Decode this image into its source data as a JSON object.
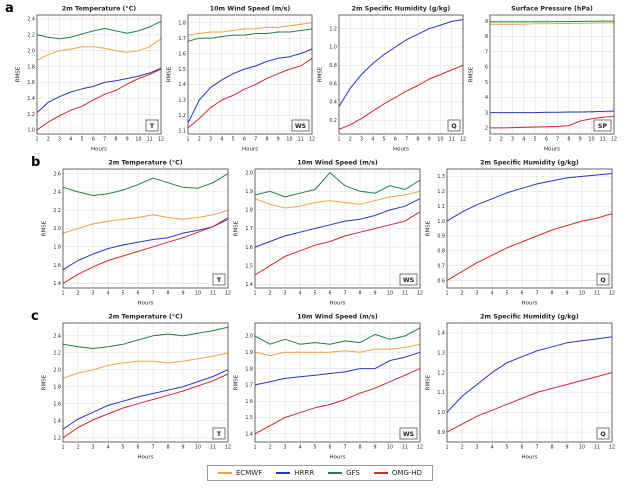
{
  "figure": {
    "panel_labels": [
      "a",
      "b",
      "c"
    ]
  },
  "colors": {
    "ECMWF": "#F2A33C",
    "HRRR": "#2238C9",
    "GFS": "#1D8348",
    "OMG-HD": "#D62828",
    "grid": "#dcdcdc",
    "axis": "#444444"
  },
  "legend": {
    "entries": [
      "ECMWF",
      "HRRR",
      "GFS",
      "OMG-HD"
    ]
  },
  "chart_data": [
    {
      "panel": "a",
      "type": "line",
      "title": "2m Temperature (°C)",
      "xlabel": "Hours",
      "ylabel": "RMSE",
      "corner_label": "T",
      "x": [
        1,
        2,
        3,
        4,
        5,
        6,
        7,
        8,
        9,
        10,
        11,
        12
      ],
      "ylim": [
        0.95,
        2.45
      ],
      "yticks": [
        "1.0",
        "1.2",
        "1.4",
        "1.6",
        "1.8",
        "2.0",
        "2.2",
        "2.4"
      ],
      "series": [
        {
          "name": "GFS",
          "values": [
            2.2,
            2.17,
            2.15,
            2.17,
            2.21,
            2.25,
            2.28,
            2.25,
            2.22,
            2.25,
            2.3,
            2.37
          ]
        },
        {
          "name": "ECMWF",
          "values": [
            1.88,
            1.95,
            2.0,
            2.02,
            2.05,
            2.05,
            2.03,
            2.0,
            1.98,
            2.0,
            2.05,
            2.15
          ]
        },
        {
          "name": "HRRR",
          "values": [
            1.22,
            1.35,
            1.42,
            1.48,
            1.52,
            1.55,
            1.6,
            1.62,
            1.65,
            1.68,
            1.72,
            1.78
          ]
        },
        {
          "name": "OMG-HD",
          "values": [
            1.0,
            1.1,
            1.18,
            1.25,
            1.3,
            1.38,
            1.45,
            1.5,
            1.58,
            1.65,
            1.7,
            1.77
          ]
        }
      ]
    },
    {
      "panel": "a",
      "type": "line",
      "title": "10m Wind Speed (m/s)",
      "xlabel": "Hours",
      "ylabel": "RMSE",
      "corner_label": "WS",
      "x": [
        1,
        2,
        3,
        4,
        5,
        6,
        7,
        8,
        9,
        10,
        11,
        12
      ],
      "ylim": [
        1.08,
        1.85
      ],
      "yticks": [
        "1.1",
        "1.2",
        "1.3",
        "1.4",
        "1.5",
        "1.6",
        "1.7",
        "1.8"
      ],
      "series": [
        {
          "name": "GFS",
          "values": [
            1.68,
            1.7,
            1.7,
            1.71,
            1.72,
            1.72,
            1.73,
            1.73,
            1.74,
            1.74,
            1.75,
            1.76
          ]
        },
        {
          "name": "ECMWF",
          "values": [
            1.72,
            1.73,
            1.74,
            1.74,
            1.75,
            1.76,
            1.76,
            1.77,
            1.77,
            1.78,
            1.79,
            1.8
          ]
        },
        {
          "name": "HRRR",
          "values": [
            1.15,
            1.3,
            1.38,
            1.43,
            1.47,
            1.5,
            1.52,
            1.55,
            1.57,
            1.58,
            1.6,
            1.63
          ]
        },
        {
          "name": "OMG-HD",
          "values": [
            1.12,
            1.18,
            1.25,
            1.3,
            1.33,
            1.37,
            1.4,
            1.44,
            1.47,
            1.5,
            1.52,
            1.57
          ]
        }
      ]
    },
    {
      "panel": "a",
      "type": "line",
      "title": "2m Specific Humidity (g/kg)",
      "xlabel": "Hours",
      "ylabel": "RMSE",
      "corner_label": "Q",
      "x": [
        1,
        2,
        3,
        4,
        5,
        6,
        7,
        8,
        9,
        10,
        11,
        12
      ],
      "ylim": [
        0.05,
        1.35
      ],
      "yticks": [
        "0.2",
        "0.4",
        "0.6",
        "0.8",
        "1.0",
        "1.2"
      ],
      "series": [
        {
          "name": "HRRR",
          "values": [
            0.35,
            0.55,
            0.7,
            0.82,
            0.92,
            1.0,
            1.08,
            1.14,
            1.2,
            1.24,
            1.28,
            1.3
          ]
        },
        {
          "name": "OMG-HD",
          "values": [
            0.1,
            0.15,
            0.22,
            0.3,
            0.38,
            0.45,
            0.52,
            0.58,
            0.65,
            0.7,
            0.75,
            0.8
          ]
        }
      ]
    },
    {
      "panel": "a",
      "type": "line",
      "title": "Surface Pressure (hPa)",
      "xlabel": "Hours",
      "ylabel": "RMSE",
      "corner_label": "SP",
      "x": [
        1,
        2,
        3,
        4,
        5,
        6,
        7,
        8,
        9,
        10,
        11,
        12
      ],
      "ylim": [
        1.6,
        9.4
      ],
      "yticks": [
        "2",
        "3",
        "4",
        "5",
        "6",
        "7",
        "8",
        "9"
      ],
      "series": [
        {
          "name": "GFS",
          "values": [
            8.95,
            8.95,
            8.95,
            8.95,
            8.96,
            8.96,
            8.97,
            8.97,
            8.98,
            8.98,
            9.0,
            9.0
          ]
        },
        {
          "name": "ECMWF",
          "values": [
            8.8,
            8.8,
            8.8,
            8.8,
            8.82,
            8.82,
            8.84,
            8.84,
            8.86,
            8.86,
            8.88,
            8.88
          ]
        },
        {
          "name": "HRRR",
          "values": [
            3.0,
            3.0,
            3.0,
            3.0,
            3.0,
            3.02,
            3.02,
            3.04,
            3.04,
            3.06,
            3.08,
            3.1
          ]
        },
        {
          "name": "OMG-HD",
          "values": [
            2.0,
            2.0,
            2.02,
            2.04,
            2.06,
            2.08,
            2.1,
            2.15,
            2.45,
            2.6,
            2.7,
            2.75
          ]
        }
      ]
    },
    {
      "panel": "b",
      "type": "line",
      "title": "2m Temperature (°C)",
      "xlabel": "Hours",
      "ylabel": "RMSE",
      "corner_label": "T",
      "x": [
        1,
        2,
        3,
        4,
        5,
        6,
        7,
        8,
        9,
        10,
        11,
        12
      ],
      "ylim": [
        1.35,
        2.65
      ],
      "yticks": [
        "1.4",
        "1.6",
        "1.8",
        "2.0",
        "2.2",
        "2.4",
        "2.6"
      ],
      "series": [
        {
          "name": "GFS",
          "values": [
            2.45,
            2.4,
            2.36,
            2.38,
            2.42,
            2.48,
            2.55,
            2.5,
            2.45,
            2.44,
            2.5,
            2.6
          ]
        },
        {
          "name": "ECMWF",
          "values": [
            1.95,
            2.0,
            2.05,
            2.08,
            2.1,
            2.12,
            2.15,
            2.12,
            2.1,
            2.12,
            2.15,
            2.2
          ]
        },
        {
          "name": "HRRR",
          "values": [
            1.55,
            1.65,
            1.72,
            1.78,
            1.82,
            1.85,
            1.88,
            1.9,
            1.95,
            1.98,
            2.02,
            2.1
          ]
        },
        {
          "name": "OMG-HD",
          "values": [
            1.4,
            1.5,
            1.58,
            1.65,
            1.7,
            1.75,
            1.8,
            1.85,
            1.9,
            1.96,
            2.02,
            2.12
          ]
        }
      ]
    },
    {
      "panel": "b",
      "type": "line",
      "title": "10m Wind Speed (m/s)",
      "xlabel": "Hours",
      "ylabel": "RMSE",
      "corner_label": "WS",
      "x": [
        1,
        2,
        3,
        4,
        5,
        6,
        7,
        8,
        9,
        10,
        11,
        12
      ],
      "ylim": [
        1.38,
        2.02
      ],
      "yticks": [
        "1.4",
        "1.5",
        "1.6",
        "1.7",
        "1.8",
        "1.9",
        "2.0"
      ],
      "series": [
        {
          "name": "GFS",
          "values": [
            1.88,
            1.9,
            1.87,
            1.89,
            1.91,
            2.0,
            1.93,
            1.9,
            1.89,
            1.93,
            1.91,
            1.96
          ]
        },
        {
          "name": "ECMWF",
          "values": [
            1.86,
            1.83,
            1.81,
            1.82,
            1.84,
            1.85,
            1.84,
            1.83,
            1.85,
            1.87,
            1.88,
            1.9
          ]
        },
        {
          "name": "HRRR",
          "values": [
            1.6,
            1.63,
            1.66,
            1.68,
            1.7,
            1.72,
            1.74,
            1.75,
            1.77,
            1.8,
            1.82,
            1.86
          ]
        },
        {
          "name": "OMG-HD",
          "values": [
            1.45,
            1.5,
            1.55,
            1.58,
            1.61,
            1.63,
            1.66,
            1.68,
            1.7,
            1.72,
            1.74,
            1.79
          ]
        }
      ]
    },
    {
      "panel": "b",
      "type": "line",
      "title": "2m Specific Humidity (g/kg)",
      "xlabel": "Hours",
      "ylabel": "RMSE",
      "corner_label": "Q",
      "x": [
        1,
        2,
        3,
        4,
        5,
        6,
        7,
        8,
        9,
        10,
        11,
        12
      ],
      "ylim": [
        0.55,
        1.35
      ],
      "yticks": [
        "0.6",
        "0.7",
        "0.8",
        "0.9",
        "1.0",
        "1.1",
        "1.2",
        "1.3"
      ],
      "series": [
        {
          "name": "HRRR",
          "values": [
            1.0,
            1.06,
            1.11,
            1.15,
            1.19,
            1.22,
            1.25,
            1.27,
            1.29,
            1.3,
            1.31,
            1.32
          ]
        },
        {
          "name": "OMG-HD",
          "values": [
            0.6,
            0.66,
            0.72,
            0.77,
            0.82,
            0.86,
            0.9,
            0.94,
            0.97,
            1.0,
            1.02,
            1.05
          ]
        }
      ]
    },
    {
      "panel": "c",
      "type": "line",
      "title": "2m Temperature (°C)",
      "xlabel": "Hours",
      "ylabel": "RMSE",
      "corner_label": "T",
      "x": [
        1,
        2,
        3,
        4,
        5,
        6,
        7,
        8,
        9,
        10,
        11,
        12
      ],
      "ylim": [
        1.15,
        2.55
      ],
      "yticks": [
        "1.2",
        "1.4",
        "1.6",
        "1.8",
        "2.0",
        "2.2",
        "2.4"
      ],
      "series": [
        {
          "name": "GFS",
          "values": [
            2.3,
            2.27,
            2.25,
            2.27,
            2.3,
            2.35,
            2.4,
            2.42,
            2.4,
            2.43,
            2.46,
            2.5
          ]
        },
        {
          "name": "ECMWF",
          "values": [
            1.9,
            1.96,
            2.0,
            2.05,
            2.08,
            2.1,
            2.1,
            2.08,
            2.1,
            2.13,
            2.16,
            2.2
          ]
        },
        {
          "name": "HRRR",
          "values": [
            1.3,
            1.42,
            1.5,
            1.58,
            1.63,
            1.68,
            1.72,
            1.76,
            1.8,
            1.86,
            1.92,
            2.0
          ]
        },
        {
          "name": "OMG-HD",
          "values": [
            1.2,
            1.32,
            1.41,
            1.48,
            1.55,
            1.6,
            1.65,
            1.7,
            1.75,
            1.81,
            1.87,
            1.95
          ]
        }
      ]
    },
    {
      "panel": "c",
      "type": "line",
      "title": "10m Wind Speed (m/s)",
      "xlabel": "Hours",
      "ylabel": "RMSE",
      "corner_label": "WS",
      "x": [
        1,
        2,
        3,
        4,
        5,
        6,
        7,
        8,
        9,
        10,
        11,
        12
      ],
      "ylim": [
        1.35,
        2.08
      ],
      "yticks": [
        "1.4",
        "1.5",
        "1.6",
        "1.7",
        "1.8",
        "1.9",
        "2.0"
      ],
      "series": [
        {
          "name": "GFS",
          "values": [
            2.0,
            1.95,
            1.98,
            1.95,
            1.96,
            1.95,
            1.97,
            1.96,
            2.01,
            1.98,
            2.0,
            2.05
          ]
        },
        {
          "name": "ECMWF",
          "values": [
            1.9,
            1.88,
            1.9,
            1.9,
            1.9,
            1.9,
            1.91,
            1.9,
            1.92,
            1.92,
            1.93,
            1.95
          ]
        },
        {
          "name": "HRRR",
          "values": [
            1.7,
            1.72,
            1.74,
            1.75,
            1.76,
            1.77,
            1.78,
            1.8,
            1.8,
            1.85,
            1.87,
            1.9
          ]
        },
        {
          "name": "OMG-HD",
          "values": [
            1.4,
            1.45,
            1.5,
            1.53,
            1.56,
            1.58,
            1.61,
            1.65,
            1.68,
            1.72,
            1.76,
            1.8
          ]
        }
      ]
    },
    {
      "panel": "c",
      "type": "line",
      "title": "2m Specific Humidity (g/kg)",
      "xlabel": "Hours",
      "ylabel": "RMSE",
      "corner_label": "Q",
      "x": [
        1,
        2,
        3,
        4,
        5,
        6,
        7,
        8,
        9,
        10,
        11,
        12
      ],
      "ylim": [
        0.85,
        1.45
      ],
      "yticks": [
        "0.9",
        "1.0",
        "1.1",
        "1.2",
        "1.3",
        "1.4"
      ],
      "series": [
        {
          "name": "HRRR",
          "values": [
            1.0,
            1.08,
            1.14,
            1.2,
            1.25,
            1.28,
            1.31,
            1.33,
            1.35,
            1.36,
            1.37,
            1.38
          ]
        },
        {
          "name": "OMG-HD",
          "values": [
            0.9,
            0.94,
            0.98,
            1.01,
            1.04,
            1.07,
            1.1,
            1.12,
            1.14,
            1.16,
            1.18,
            1.2
          ]
        }
      ]
    }
  ]
}
